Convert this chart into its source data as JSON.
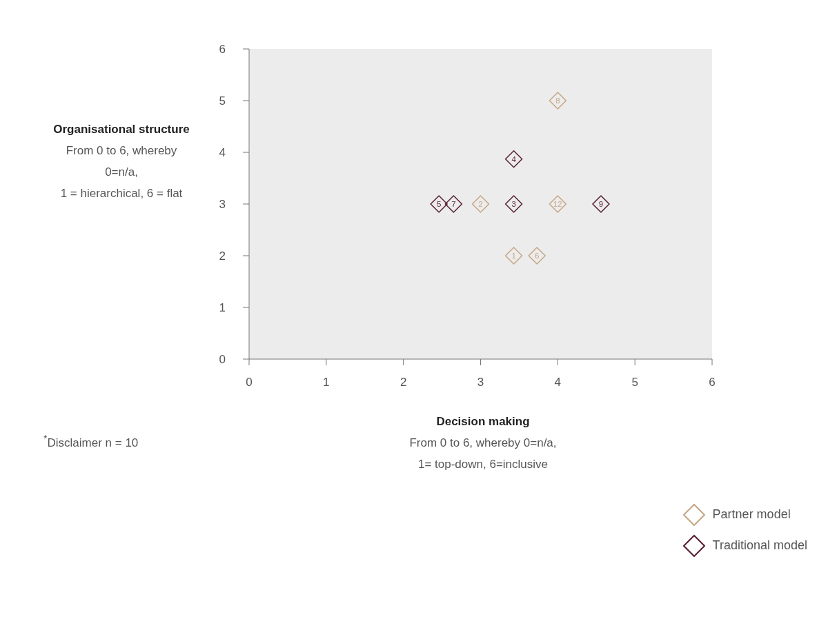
{
  "chart_data": {
    "type": "scatter",
    "xlabel": "Decision making\nFrom 0 to 6, whereby 0=n/a,\n1= top-down, 6=inclusive",
    "ylabel": "Organisational structure\nFrom 0 to 6, whereby\n0=n/a,\n1 = hierarchical, 6 = flat",
    "annotations": [
      "$^{*}$Disclaimer n = 10",
      {
        "text": "8",
        "x": 4,
        "y": 5
      },
      {
        "text": "2",
        "x": 3,
        "y": 3
      },
      {
        "text": "12",
        "x": 4,
        "y": 3
      },
      {
        "text": "1",
        "x": 3.43,
        "y": 2
      },
      {
        "text": "6",
        "x": 3.73,
        "y": 2
      },
      {
        "text": "4",
        "x": 3.43,
        "y": 3.87
      },
      {
        "text": "5",
        "x": 2.46,
        "y": 3
      },
      {
        "text": "7",
        "x": 2.65,
        "y": 3
      },
      {
        "text": "3",
        "x": 3.43,
        "y": 3
      },
      {
        "text": "9",
        "x": 4.56,
        "y": 3
      }
    ],
    "xlim": [
      0,
      6
    ],
    "ylim": [
      0,
      6
    ],
    "xticks": [
      0,
      1,
      2,
      3,
      4,
      5,
      6
    ],
    "yticks": [
      0,
      1,
      2,
      3,
      4,
      5,
      6
    ],
    "series": [
      {
        "name": "Partner model",
        "color": "#c6a888",
        "x": [
          4,
          3,
          4,
          3.43,
          3.73
        ],
        "values": [
          5,
          3,
          3,
          2,
          2
        ]
      },
      {
        "name": "Traditional model",
        "color": "#5b2338",
        "x": [
          3.43,
          2.46,
          2.65,
          3.43,
          4.56
        ],
        "values": [
          3.87,
          3,
          3,
          3,
          3
        ]
      }
    ],
    "marker": "diamond",
    "grid": false,
    "legend": "bottom right"
  }
}
